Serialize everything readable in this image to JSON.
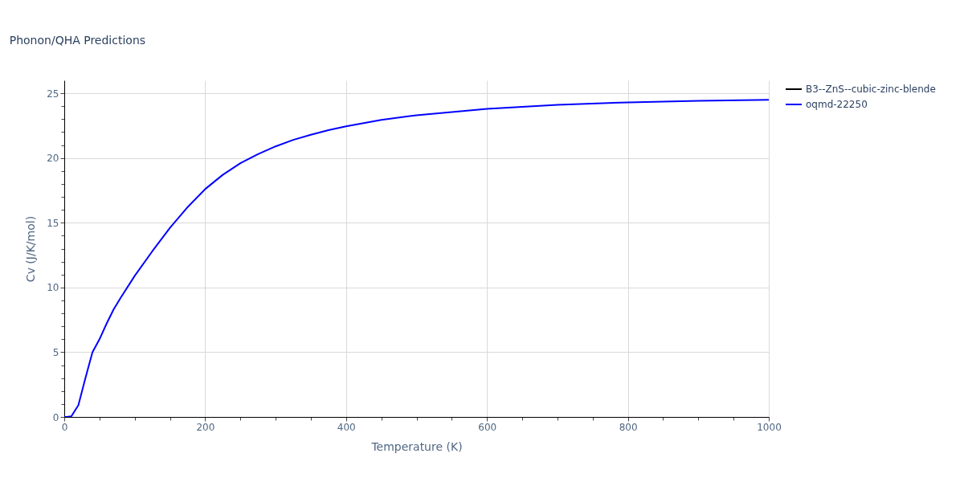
{
  "chart_data": {
    "type": "line",
    "title": "Phonon/QHA Predictions",
    "xlabel": "Temperature (K)",
    "ylabel": "Cv (J/K/mol)",
    "x": [
      0,
      5,
      10,
      20,
      30,
      40,
      50,
      60,
      70,
      80,
      100,
      125,
      150,
      175,
      200,
      225,
      250,
      275,
      300,
      325,
      350,
      375,
      400,
      450,
      500,
      550,
      600,
      700,
      800,
      900,
      1000
    ],
    "series": [
      {
        "name": "B3--ZnS--cubic-zinc-blende",
        "color": "#000000",
        "values": [
          null,
          null,
          null,
          null,
          null,
          null,
          null,
          null,
          null,
          null,
          null,
          null,
          null,
          null,
          null,
          null,
          null,
          null,
          null,
          null,
          null,
          null,
          null,
          null,
          null,
          null,
          null,
          null,
          null,
          null,
          null
        ]
      },
      {
        "name": "oqmd-22250",
        "color": "#0000ff",
        "values": [
          0,
          0.01,
          0.05,
          0.9,
          3.0,
          5.0,
          6.0,
          7.2,
          8.3,
          9.2,
          10.9,
          12.8,
          14.6,
          16.2,
          17.6,
          18.7,
          19.6,
          20.3,
          20.9,
          21.4,
          21.8,
          22.15,
          22.45,
          22.95,
          23.3,
          23.55,
          23.8,
          24.1,
          24.3,
          24.42,
          24.5
        ]
      }
    ],
    "xlim": [
      0,
      1000
    ],
    "xticks": [
      0,
      {
        "value": 50,
        "label": null
      },
      {
        "value": 100,
        "label": null
      },
      {
        "value": 150,
        "label": null
      },
      200,
      {
        "value": 250,
        "label": null
      },
      {
        "value": 300,
        "label": null
      },
      {
        "value": 350,
        "label": null
      },
      400,
      {
        "value": 450,
        "label": null
      },
      {
        "value": 500,
        "label": null
      },
      {
        "value": 550,
        "label": null
      },
      600,
      {
        "value": 650,
        "label": null
      },
      {
        "value": 700,
        "label": null
      },
      {
        "value": 750,
        "label": null
      },
      800,
      {
        "value": 850,
        "label": null
      },
      {
        "value": 900,
        "label": null
      },
      {
        "value": 950,
        "label": null
      },
      1000
    ],
    "ylim": [
      0,
      26
    ],
    "yticks": [
      0,
      {
        "value": 1,
        "label": null
      },
      {
        "value": 2,
        "label": null
      },
      {
        "value": 3,
        "label": null
      },
      {
        "value": 4,
        "label": null
      },
      5,
      {
        "value": 6,
        "label": null
      },
      {
        "value": 7,
        "label": null
      },
      {
        "value": 8,
        "label": null
      },
      {
        "value": 9,
        "label": null
      },
      10,
      {
        "value": 11,
        "label": null
      },
      {
        "value": 12,
        "label": null
      },
      {
        "value": 13,
        "label": null
      },
      {
        "value": 14,
        "label": null
      },
      15,
      {
        "value": 16,
        "label": null
      },
      {
        "value": 17,
        "label": null
      },
      {
        "value": 18,
        "label": null
      },
      {
        "value": 19,
        "label": null
      },
      20,
      {
        "value": 21,
        "label": null
      },
      {
        "value": 22,
        "label": null
      },
      {
        "value": 23,
        "label": null
      },
      {
        "value": 24,
        "label": null
      },
      25
    ],
    "grid": true,
    "legend": "top right",
    "line_style": "solid",
    "marker": "none"
  }
}
